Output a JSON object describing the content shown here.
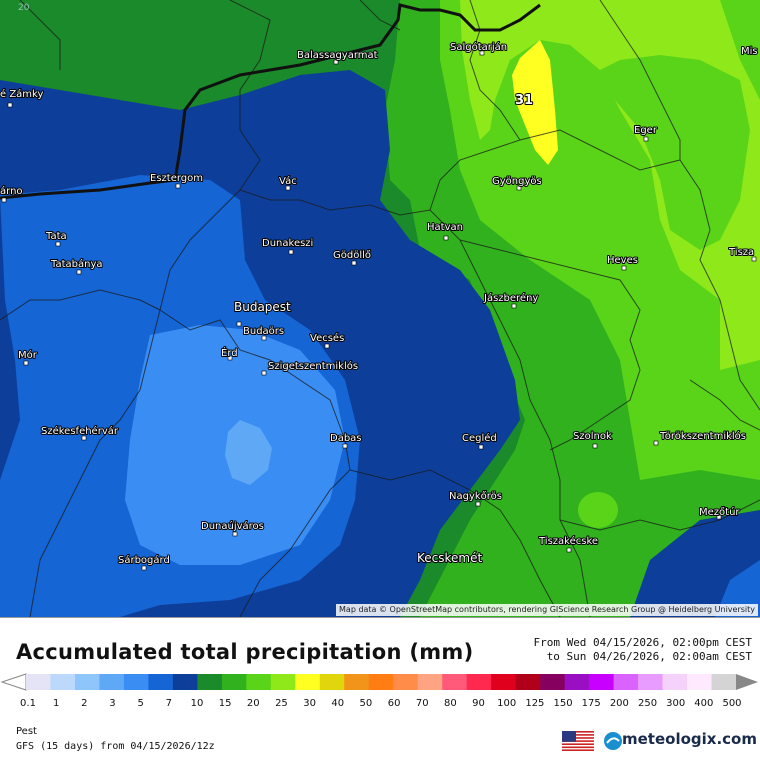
{
  "map": {
    "corner_tick": "20",
    "peak_label": "31",
    "attribution": "Map data © OpenStreetMap contributors, rendering GIScience Research Group @ Heidelberg University",
    "cities": [
      {
        "name": "Balassagyarmat"
      },
      {
        "name": "Salgótarján"
      },
      {
        "name": "Mis"
      },
      {
        "name": "é Zámky"
      },
      {
        "name": "Eger"
      },
      {
        "name": "Esztergom"
      },
      {
        "name": "Vác"
      },
      {
        "name": "Gyöngyös"
      },
      {
        "name": "árno"
      },
      {
        "name": "Tata"
      },
      {
        "name": "Dunakeszi"
      },
      {
        "name": "Gödöllő"
      },
      {
        "name": "Hatvan"
      },
      {
        "name": "Tatabánya"
      },
      {
        "name": "Heves"
      },
      {
        "name": "Tisza"
      },
      {
        "name": "Budapest"
      },
      {
        "name": "Jászberény"
      },
      {
        "name": "Budaörs"
      },
      {
        "name": "Mór"
      },
      {
        "name": "Érd"
      },
      {
        "name": "Vecsés"
      },
      {
        "name": "Szigetszentmiklós"
      },
      {
        "name": "Székesfehérvár"
      },
      {
        "name": "Dabas"
      },
      {
        "name": "Cegléd"
      },
      {
        "name": "Szolnok"
      },
      {
        "name": "Törökszentmiklós"
      },
      {
        "name": "Nagykőrös"
      },
      {
        "name": "Mezőtúr"
      },
      {
        "name": "Dunaújváros"
      },
      {
        "name": "Tiszakécske"
      },
      {
        "name": "Sárbogárd"
      },
      {
        "name": "Kecskemét"
      }
    ]
  },
  "legend": {
    "title": "Accumulated total precipitation (mm)",
    "period_from": "From Wed 04/15/2026, 02:00pm CEST",
    "period_to": "to Sun 04/26/2026, 02:00am CEST",
    "ticks": [
      "0.1",
      "1",
      "2",
      "3",
      "5",
      "7",
      "10",
      "15",
      "20",
      "25",
      "30",
      "40",
      "50",
      "60",
      "70",
      "80",
      "90",
      "100",
      "125",
      "150",
      "175",
      "200",
      "250",
      "300",
      "400",
      "500"
    ],
    "colors": [
      "#e4e4f6",
      "#bcd9fb",
      "#8ec5fb",
      "#5ea8f6",
      "#3a8ef3",
      "#1565d5",
      "#0d3f9a",
      "#1a8a2a",
      "#31b11d",
      "#5ad419",
      "#8ee81a",
      "#ffff22",
      "#e1d60e",
      "#f2931a",
      "#ff7d12",
      "#ff8c48",
      "#ffa482",
      "#ff5a7a",
      "#ff2950",
      "#e0001d",
      "#b0001a",
      "#86005f",
      "#9a0fc2",
      "#c800ff",
      "#da62ff",
      "#e99cff",
      "#f4d2fb",
      "#ffe9ff",
      "#d4d4d4"
    ],
    "location": "Pest",
    "model": "GFS (15 days) from  04/15/2026/12z",
    "brand": "meteologix.com"
  }
}
